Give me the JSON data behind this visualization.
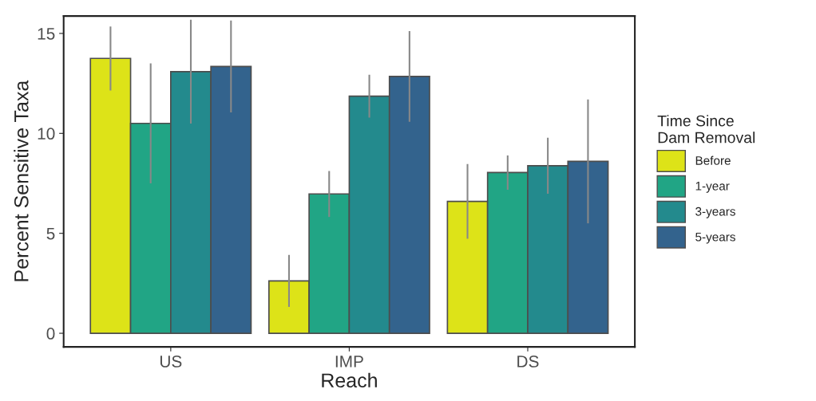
{
  "chart_data": {
    "type": "bar",
    "xlabel": "Reach",
    "ylabel": "Percent Sensitive Taxa",
    "legend_title": "Time Since\nDam Removal",
    "categories": [
      "US",
      "IMP",
      "DS"
    ],
    "series": [
      {
        "name": "Before",
        "color": "#dde318",
        "values": [
          13.75,
          2.62,
          6.6
        ],
        "errors": [
          1.6,
          1.3,
          1.87
        ]
      },
      {
        "name": "1-year",
        "color": "#21a585",
        "values": [
          10.5,
          6.97,
          8.04
        ],
        "errors": [
          3.0,
          1.15,
          0.86
        ]
      },
      {
        "name": "3-years",
        "color": "#238a8d",
        "values": [
          13.09,
          11.86,
          8.38
        ],
        "errors": [
          2.6,
          1.07,
          1.4
        ]
      },
      {
        "name": "5-years",
        "color": "#33638d",
        "values": [
          13.35,
          12.85,
          8.6
        ],
        "errors": [
          2.3,
          2.27,
          3.1
        ]
      }
    ],
    "ylim": [
      -0.68,
      15.87
    ],
    "yticks": [
      0,
      5,
      10,
      15
    ],
    "grid": false,
    "legend": "right"
  }
}
